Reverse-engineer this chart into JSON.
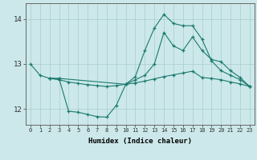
{
  "xlabel": "Humidex (Indice chaleur)",
  "bg_color": "#cce8ea",
  "grid_color": "#aacccc",
  "line_color": "#1a7a6e",
  "ylim": [
    11.65,
    14.35
  ],
  "yticks": [
    12,
    13,
    14
  ],
  "x_ticks": [
    0,
    1,
    2,
    3,
    4,
    5,
    6,
    7,
    8,
    9,
    10,
    11,
    12,
    13,
    14,
    15,
    16,
    17,
    18,
    19,
    20,
    21,
    22,
    23
  ],
  "line1_x": [
    0,
    1,
    2,
    3,
    4,
    5,
    6,
    7,
    8,
    9,
    10,
    11,
    12,
    13,
    14,
    15,
    16,
    17,
    18,
    19,
    20,
    21,
    22,
    23
  ],
  "line1_y": [
    13.0,
    12.75,
    12.68,
    12.68,
    11.95,
    11.93,
    11.88,
    11.83,
    11.82,
    12.08,
    12.55,
    12.72,
    13.3,
    13.8,
    14.1,
    13.9,
    13.85,
    13.85,
    13.55,
    13.07,
    12.85,
    12.75,
    12.65,
    12.5
  ],
  "line3_x": [
    2,
    3,
    10,
    11,
    12,
    13,
    14,
    15,
    16,
    17,
    18,
    19,
    20,
    21,
    22,
    23
  ],
  "line3_y": [
    12.68,
    12.68,
    12.55,
    12.65,
    12.75,
    13.0,
    13.7,
    13.4,
    13.3,
    13.6,
    13.3,
    13.1,
    13.05,
    12.85,
    12.7,
    12.5
  ],
  "line4_x": [
    2,
    3,
    4,
    5,
    6,
    7,
    8,
    9,
    10,
    11,
    12,
    13,
    14,
    15,
    16,
    17,
    18,
    19,
    20,
    21,
    22,
    23
  ],
  "line4_y": [
    12.68,
    12.65,
    12.6,
    12.57,
    12.54,
    12.52,
    12.5,
    12.52,
    12.55,
    12.58,
    12.62,
    12.67,
    12.72,
    12.76,
    12.8,
    12.84,
    12.7,
    12.68,
    12.65,
    12.6,
    12.56,
    12.5
  ]
}
